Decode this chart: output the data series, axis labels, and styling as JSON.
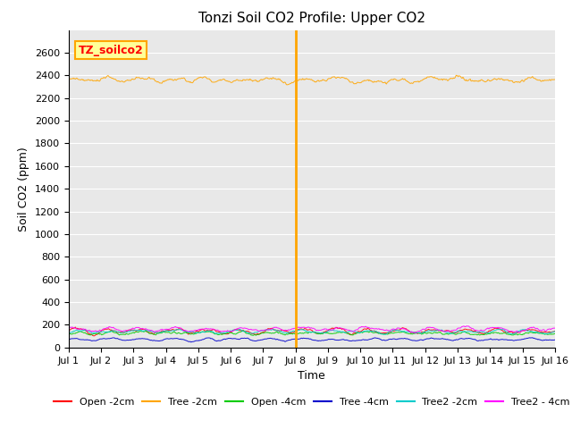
{
  "title": "Tonzi Soil CO2 Profile: Upper CO2",
  "xlabel": "Time",
  "ylabel": "Soil CO2 (ppm)",
  "ylim": [
    0,
    2800
  ],
  "yticks": [
    0,
    200,
    400,
    600,
    800,
    1000,
    1200,
    1400,
    1600,
    1800,
    2000,
    2200,
    2400,
    2600
  ],
  "xtick_labels": [
    "Jul 1",
    "Jul 2",
    "Jul 3",
    "Jul 4",
    "Jul 5",
    "Jul 6",
    "Jul 7",
    "Jul 8",
    "Jul 9",
    "Jul 10",
    "Jul 11",
    "Jul 12",
    "Jul 13",
    "Jul 14",
    "Jul 15",
    "Jul 16"
  ],
  "vline_x": 7,
  "vline_color": "#FFA500",
  "background_color": "#E8E8E8",
  "legend_label": "TZ_soilco2",
  "legend_box_facecolor": "#FFFF99",
  "legend_box_edgecolor": "#FFA500",
  "series": {
    "Open_2cm": {
      "color": "#FF0000",
      "mean": 145,
      "noise": 8,
      "diurnal_amp": 15
    },
    "Tree_2cm": {
      "color": "#FFA500",
      "mean": 2360,
      "noise": 12,
      "diurnal_amp": 10
    },
    "Open_4cm": {
      "color": "#00CC00",
      "mean": 125,
      "noise": 6,
      "diurnal_amp": 8
    },
    "Tree_4cm": {
      "color": "#0000CC",
      "mean": 70,
      "noise": 5,
      "diurnal_amp": 8
    },
    "Tree2_2cm": {
      "color": "#00CCCC",
      "mean": 140,
      "noise": 7,
      "diurnal_amp": 10
    },
    "Tree2_4cm": {
      "color": "#FF00FF",
      "mean": 160,
      "noise": 8,
      "diurnal_amp": 12
    }
  },
  "legend_entries": [
    {
      "label": "Open -2cm",
      "color": "#FF0000"
    },
    {
      "label": "Tree -2cm",
      "color": "#FFA500"
    },
    {
      "label": "Open -4cm",
      "color": "#00CC00"
    },
    {
      "label": "Tree -4cm",
      "color": "#0000CC"
    },
    {
      "label": "Tree2 -2cm",
      "color": "#00CCCC"
    },
    {
      "label": "Tree2 - 4cm",
      "color": "#FF00FF"
    }
  ],
  "n_days": 15,
  "pts_per_day": 48,
  "title_fontsize": 11,
  "axis_label_fontsize": 9,
  "tick_fontsize": 8,
  "legend_fontsize": 8
}
